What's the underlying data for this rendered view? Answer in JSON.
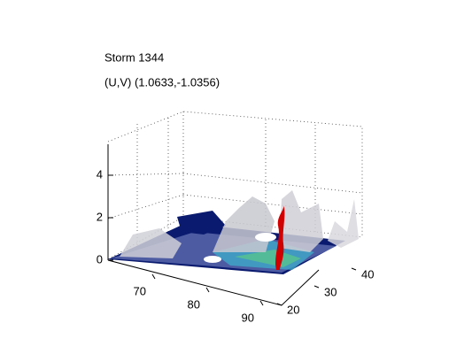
{
  "title": "Storm 1344",
  "subtitle": "(U,V) (1.0633,-1.0356)",
  "axes": {
    "z_ticks": [
      0,
      2,
      4
    ],
    "x_ticks": [
      70,
      80,
      90
    ],
    "y_ticks": [
      20,
      30,
      40
    ]
  }
}
